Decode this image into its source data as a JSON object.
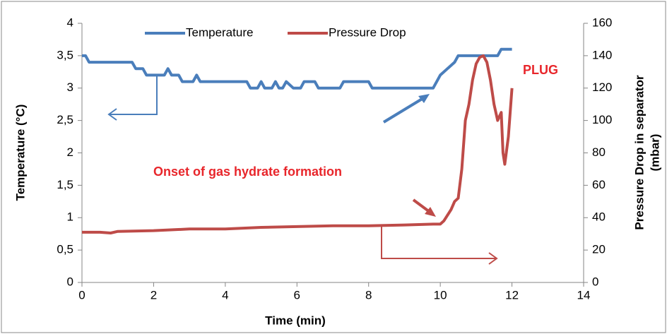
{
  "chart_data": {
    "type": "line",
    "xlabel": "Time (min)",
    "ylabel": "Temperature (°C)",
    "y2label": [
      "Pressure Drop in separator",
      "(mbar)"
    ],
    "xlim": [
      0,
      14
    ],
    "xticks": [
      0,
      2,
      4,
      6,
      8,
      10,
      12,
      14
    ],
    "ylim": [
      0,
      4
    ],
    "yticks": [
      0,
      {
        "value": 0.5,
        "label": "0,5"
      },
      1,
      {
        "value": 1.5,
        "label": "1,5"
      },
      2,
      {
        "value": 2.5,
        "label": "2,5"
      },
      3,
      {
        "value": 3.5,
        "label": "3,5"
      },
      4
    ],
    "y2lim": [
      0,
      160
    ],
    "y2ticks": [
      0,
      20,
      40,
      60,
      80,
      100,
      120,
      140,
      160
    ],
    "grid": false,
    "legend": "top",
    "annotations": [
      "Onset of gas hydrate formation",
      "PLUG"
    ],
    "series": [
      {
        "name": "Temperature",
        "color": "#4a7ebb",
        "x": [
          0,
          0.1,
          0.2,
          1.4,
          1.5,
          1.7,
          1.8,
          2.3,
          2.4,
          2.5,
          2.7,
          2.8,
          3.1,
          3.2,
          3.3,
          4.6,
          4.7,
          4.9,
          5.0,
          5.1,
          5.3,
          5.4,
          5.5,
          5.6,
          5.7,
          5.9,
          6.1,
          6.2,
          6.5,
          6.6,
          7.2,
          7.3,
          8.0,
          8.1,
          9.8,
          10.0,
          10.2,
          10.4,
          10.5,
          11.6,
          11.7,
          12.0
        ],
        "values": [
          3.5,
          3.5,
          3.4,
          3.4,
          3.3,
          3.3,
          3.2,
          3.2,
          3.3,
          3.2,
          3.2,
          3.1,
          3.1,
          3.2,
          3.1,
          3.1,
          3.0,
          3.0,
          3.1,
          3.0,
          3.0,
          3.1,
          3.0,
          3.0,
          3.1,
          3.0,
          3.0,
          3.1,
          3.1,
          3.0,
          3.0,
          3.1,
          3.1,
          3.0,
          3.0,
          3.2,
          3.3,
          3.4,
          3.5,
          3.5,
          3.6,
          3.6
        ]
      },
      {
        "name": "Pressure Drop",
        "color": "#be4b48",
        "axis": "y2",
        "x": [
          0,
          0.5,
          0.8,
          1,
          2,
          3,
          4,
          5,
          6,
          7,
          8,
          9,
          9.8,
          10.0,
          10.1,
          10.3,
          10.4,
          10.5,
          10.6,
          10.7,
          10.8,
          10.9,
          11.0,
          11.1,
          11.2,
          11.3,
          11.4,
          11.5,
          11.6,
          11.7,
          11.75,
          11.8,
          11.9,
          12.0
        ],
        "values": [
          31,
          31,
          30.5,
          31.5,
          32,
          33,
          33,
          34,
          34.5,
          35,
          35,
          35.5,
          36,
          36,
          38,
          45,
          50,
          52,
          70,
          100,
          110,
          125,
          135,
          139,
          140,
          136,
          125,
          110,
          100,
          105,
          80,
          73,
          90,
          120
        ]
      }
    ]
  }
}
